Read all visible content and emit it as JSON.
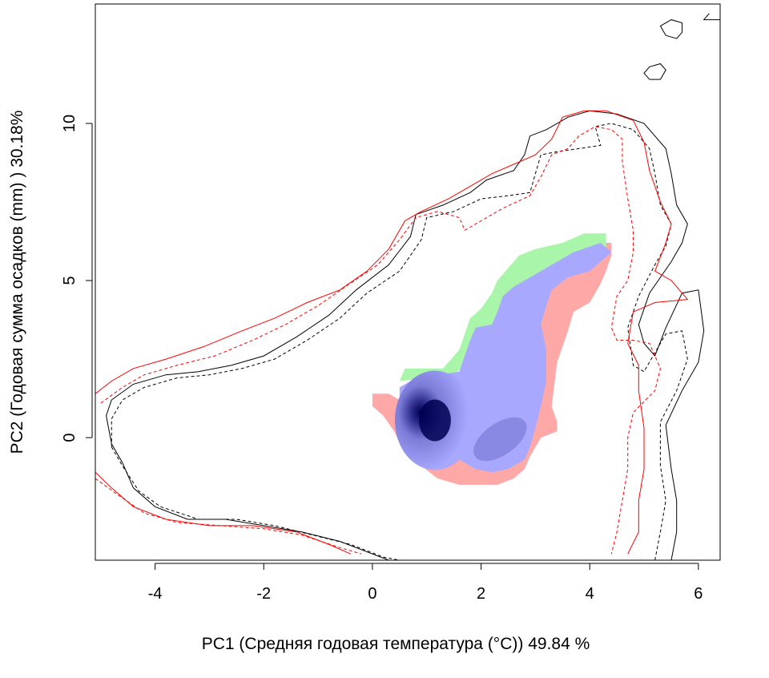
{
  "chart_data": {
    "type": "contour-niche",
    "title": "",
    "xlabel": "PC1 (Средняя годовая температура (°C)) 49.84 %",
    "ylabel": "PC2 (Годовая сумма осадков  (mm) ) 30.18%",
    "xlim": [
      -5.1,
      6.4
    ],
    "ylim": [
      -3.9,
      13.8
    ],
    "xticks": [
      -4,
      -2,
      0,
      2,
      4,
      6
    ],
    "yticks": [
      0,
      5,
      10
    ],
    "xtick_labels": [
      "-4",
      "-2",
      "0",
      "2",
      "4",
      "6"
    ],
    "ytick_labels": [
      "0",
      "5",
      "10"
    ],
    "grid": false,
    "legend": "none",
    "colors": {
      "overlap_density_dark": "#000052",
      "overlap_density_light": "#a8a8ff",
      "stability_blue": "#a8a8ff",
      "expansion_green": "#a9f5a9",
      "unfilling_pink": "#ffa8a8",
      "native_env": "#000000",
      "invaded_env": "#ff0000"
    },
    "density_peak": [
      1.15,
      0.55
    ],
    "contours": [
      {
        "color": "#000000",
        "dash": "solid",
        "points": [
          [
            -4.8,
            -0.2
          ],
          [
            -4.9,
            0.7
          ],
          [
            -4.8,
            1.2
          ],
          [
            -4.4,
            1.7
          ],
          [
            -3.8,
            2.0
          ],
          [
            -3.2,
            2.1
          ],
          [
            -2.6,
            2.3
          ],
          [
            -2.0,
            2.6
          ],
          [
            -1.4,
            3.2
          ],
          [
            -0.8,
            3.9
          ],
          [
            -0.3,
            4.7
          ],
          [
            0.3,
            5.5
          ],
          [
            0.7,
            6.4
          ],
          [
            0.8,
            7.1
          ],
          [
            1.3,
            7.4
          ],
          [
            1.8,
            7.8
          ],
          [
            2.1,
            8.2
          ],
          [
            2.6,
            8.5
          ],
          [
            2.8,
            9.0
          ],
          [
            2.9,
            9.6
          ],
          [
            3.2,
            9.8
          ],
          [
            3.6,
            10.2
          ],
          [
            4.0,
            10.4
          ],
          [
            4.5,
            10.3
          ],
          [
            5.0,
            10.0
          ],
          [
            5.4,
            9.2
          ],
          [
            5.5,
            8.4
          ],
          [
            5.6,
            7.4
          ],
          [
            5.8,
            6.8
          ],
          [
            5.7,
            6.2
          ],
          [
            5.5,
            5.6
          ],
          [
            5.1,
            4.6
          ],
          [
            4.9,
            3.6
          ],
          [
            5.0,
            3.0
          ],
          [
            5.2,
            2.6
          ],
          [
            5.4,
            3.5
          ],
          [
            5.7,
            4.6
          ],
          [
            6.0,
            4.7
          ],
          [
            6.1,
            3.4
          ],
          [
            6.0,
            2.4
          ],
          [
            5.7,
            1.5
          ],
          [
            5.4,
            0.4
          ],
          [
            5.5,
            -1.0
          ],
          [
            5.6,
            -2.0
          ],
          [
            5.6,
            -3.0
          ],
          [
            5.5,
            -3.9
          ]
        ]
      },
      {
        "color": "#000000",
        "dash": "dashed",
        "points": [
          [
            -4.8,
            -0.3
          ],
          [
            -4.8,
            0.6
          ],
          [
            -4.6,
            1.2
          ],
          [
            -4.2,
            1.6
          ],
          [
            -3.6,
            1.9
          ],
          [
            -3.0,
            2.0
          ],
          [
            -2.4,
            2.2
          ],
          [
            -1.8,
            2.5
          ],
          [
            -1.2,
            3.1
          ],
          [
            -0.6,
            3.8
          ],
          [
            -0.1,
            4.6
          ],
          [
            0.5,
            5.3
          ],
          [
            0.9,
            6.3
          ],
          [
            1.0,
            7.0
          ],
          [
            1.5,
            7.2
          ],
          [
            2.0,
            7.6
          ],
          [
            2.5,
            7.7
          ],
          [
            2.9,
            7.8
          ],
          [
            3.0,
            8.4
          ],
          [
            3.1,
            9.0
          ],
          [
            3.4,
            9.1
          ],
          [
            3.8,
            9.2
          ],
          [
            4.2,
            9.3
          ],
          [
            4.1,
            9.9
          ],
          [
            4.4,
            10.0
          ],
          [
            4.8,
            9.8
          ],
          [
            5.1,
            9.2
          ],
          [
            5.2,
            8.4
          ],
          [
            5.3,
            7.4
          ],
          [
            5.5,
            6.8
          ],
          [
            5.4,
            6.1
          ],
          [
            5.2,
            5.5
          ],
          [
            4.9,
            4.5
          ],
          [
            4.7,
            3.5
          ],
          [
            4.8,
            2.3
          ],
          [
            5.0,
            2.1
          ],
          [
            5.3,
            3.0
          ],
          [
            5.4,
            3.3
          ],
          [
            5.7,
            3.4
          ],
          [
            5.8,
            2.5
          ],
          [
            5.6,
            1.5
          ],
          [
            5.3,
            0.5
          ],
          [
            5.3,
            -0.9
          ],
          [
            5.4,
            -2.0
          ],
          [
            5.3,
            -3.0
          ],
          [
            5.2,
            -3.9
          ]
        ]
      },
      {
        "color": "#ff0000",
        "dash": "solid",
        "points": [
          [
            -5.1,
            1.4
          ],
          [
            -4.8,
            1.8
          ],
          [
            -4.4,
            2.2
          ],
          [
            -3.8,
            2.5
          ],
          [
            -3.1,
            2.9
          ],
          [
            -2.4,
            3.4
          ],
          [
            -1.8,
            3.8
          ],
          [
            -1.2,
            4.3
          ],
          [
            -0.6,
            4.7
          ],
          [
            -0.1,
            5.3
          ],
          [
            0.3,
            6.0
          ],
          [
            0.6,
            6.9
          ],
          [
            0.9,
            7.2
          ],
          [
            1.4,
            7.6
          ],
          [
            1.8,
            8.0
          ],
          [
            2.2,
            8.4
          ],
          [
            2.6,
            8.7
          ],
          [
            3.0,
            9.0
          ],
          [
            3.3,
            9.5
          ],
          [
            3.5,
            10.2
          ],
          [
            3.9,
            10.4
          ],
          [
            4.3,
            10.4
          ],
          [
            4.8,
            10.1
          ],
          [
            5.0,
            9.4
          ],
          [
            5.1,
            8.5
          ],
          [
            5.3,
            7.5
          ],
          [
            5.5,
            6.8
          ],
          [
            5.4,
            6.2
          ],
          [
            5.2,
            5.3
          ],
          [
            5.5,
            5.0
          ],
          [
            5.8,
            4.4
          ],
          [
            5.2,
            4.3
          ],
          [
            4.8,
            4.0
          ],
          [
            4.7,
            3.0
          ],
          [
            4.9,
            2.3
          ],
          [
            4.9,
            1.5
          ],
          [
            5.0,
            0.3
          ],
          [
            5.0,
            -1.0
          ],
          [
            4.9,
            -2.0
          ],
          [
            4.9,
            -3.0
          ],
          [
            4.7,
            -3.7
          ]
        ]
      },
      {
        "color": "#ff0000",
        "dash": "dashed",
        "points": [
          [
            -5.0,
            1.1
          ],
          [
            -4.6,
            1.6
          ],
          [
            -4.2,
            2.0
          ],
          [
            -3.6,
            2.3
          ],
          [
            -2.9,
            2.6
          ],
          [
            -2.2,
            3.1
          ],
          [
            -1.6,
            3.6
          ],
          [
            -1.0,
            4.2
          ],
          [
            -0.5,
            4.8
          ],
          [
            0.1,
            5.5
          ],
          [
            0.5,
            6.3
          ],
          [
            0.8,
            7.0
          ],
          [
            1.2,
            7.2
          ],
          [
            1.6,
            7.0
          ],
          [
            1.7,
            6.6
          ],
          [
            2.0,
            6.9
          ],
          [
            2.4,
            7.3
          ],
          [
            2.9,
            7.7
          ],
          [
            3.1,
            8.3
          ],
          [
            3.3,
            9.0
          ],
          [
            3.6,
            9.2
          ],
          [
            3.8,
            9.6
          ],
          [
            4.1,
            9.9
          ],
          [
            4.4,
            9.8
          ],
          [
            4.6,
            9.5
          ],
          [
            4.6,
            8.8
          ],
          [
            4.7,
            7.6
          ],
          [
            4.8,
            6.6
          ],
          [
            4.8,
            5.9
          ],
          [
            4.7,
            5.0
          ],
          [
            4.5,
            4.5
          ],
          [
            4.4,
            3.5
          ],
          [
            4.5,
            3.1
          ],
          [
            4.8,
            3.1
          ],
          [
            5.1,
            3.0
          ],
          [
            5.3,
            2.2
          ],
          [
            5.2,
            1.5
          ],
          [
            4.8,
            0.8
          ],
          [
            4.7,
            0.0
          ],
          [
            4.7,
            -1.0
          ],
          [
            4.6,
            -2.0
          ],
          [
            4.5,
            -3.0
          ],
          [
            4.4,
            -3.7
          ]
        ]
      },
      {
        "color": "#ff0000",
        "dash": "solid",
        "points": [
          [
            -5.1,
            -1.1
          ],
          [
            -4.8,
            -1.6
          ],
          [
            -4.4,
            -2.2
          ],
          [
            -3.8,
            -2.6
          ],
          [
            -3.0,
            -2.8
          ],
          [
            -2.2,
            -2.8
          ],
          [
            -1.4,
            -3.0
          ],
          [
            -0.8,
            -3.4
          ],
          [
            -0.4,
            -3.7
          ]
        ]
      },
      {
        "color": "#ff0000",
        "dash": "dashed",
        "points": [
          [
            -5.1,
            -1.3
          ],
          [
            -4.7,
            -1.8
          ],
          [
            -4.2,
            -2.4
          ],
          [
            -3.6,
            -2.7
          ],
          [
            -2.8,
            -2.8
          ],
          [
            -2.0,
            -2.9
          ],
          [
            -1.3,
            -3.1
          ],
          [
            -0.6,
            -3.5
          ],
          [
            -0.2,
            -3.7
          ]
        ]
      },
      {
        "color": "#000000",
        "dash": "solid",
        "points": [
          [
            -4.8,
            -0.2
          ],
          [
            -4.6,
            -0.8
          ],
          [
            -4.4,
            -1.6
          ],
          [
            -4.0,
            -2.2
          ],
          [
            -3.4,
            -2.6
          ],
          [
            -2.7,
            -2.6
          ],
          [
            -2.0,
            -2.8
          ],
          [
            -1.3,
            -3.0
          ],
          [
            -0.6,
            -3.3
          ],
          [
            0.0,
            -3.7
          ],
          [
            0.3,
            -3.9
          ]
        ]
      },
      {
        "color": "#000000",
        "dash": "dashed",
        "points": [
          [
            -4.8,
            -0.3
          ],
          [
            -4.6,
            -0.9
          ],
          [
            -4.3,
            -1.7
          ],
          [
            -3.9,
            -2.2
          ],
          [
            -3.2,
            -2.6
          ],
          [
            -2.5,
            -2.6
          ],
          [
            -1.8,
            -2.8
          ],
          [
            -1.1,
            -3.1
          ],
          [
            -0.4,
            -3.4
          ],
          [
            0.2,
            -3.8
          ],
          [
            0.5,
            -3.9
          ]
        ]
      },
      {
        "color": "#000000",
        "dash": "solid",
        "points": [
          [
            5.4,
            12.8
          ],
          [
            5.6,
            12.7
          ],
          [
            5.7,
            12.9
          ],
          [
            5.7,
            13.2
          ],
          [
            5.5,
            13.3
          ],
          [
            5.3,
            13.1
          ],
          [
            5.4,
            12.8
          ]
        ]
      },
      {
        "color": "#000000",
        "dash": "solid",
        "points": [
          [
            5.1,
            11.4
          ],
          [
            5.3,
            11.4
          ],
          [
            5.4,
            11.7
          ],
          [
            5.3,
            11.9
          ],
          [
            5.1,
            11.8
          ],
          [
            5.0,
            11.6
          ],
          [
            5.1,
            11.4
          ]
        ]
      },
      {
        "color": "#000000",
        "dash": "solid",
        "points": [
          [
            6.2,
            13.5
          ],
          [
            6.1,
            13.3
          ],
          [
            6.3,
            13.3
          ],
          [
            6.4,
            13.3
          ]
        ]
      }
    ]
  }
}
